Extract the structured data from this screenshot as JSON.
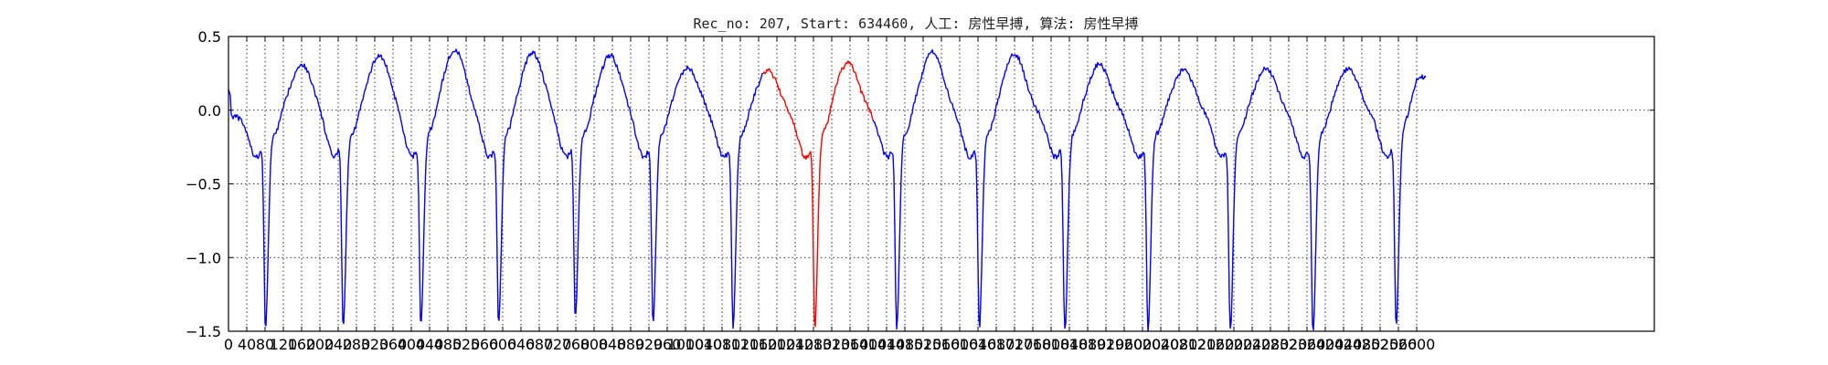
{
  "chart_data": {
    "type": "line",
    "title": "Rec_no: 207, Start: 634460, 人工: 房性早搏, 算法: 房性早搏",
    "xlabel": "",
    "ylabel": "",
    "xlim": [
      0,
      3120
    ],
    "ylim": [
      -1.5,
      0.5
    ],
    "grid": true,
    "y_ticks": [
      0.5,
      0.0,
      -0.5,
      -1.0,
      -1.5
    ],
    "y_tick_labels": [
      "0.5",
      "0.0",
      "−0.5",
      "−1.0",
      "−1.5"
    ],
    "x_ticks": [
      0,
      40,
      80,
      120,
      160,
      200,
      240,
      280,
      320,
      360,
      400,
      440,
      480,
      520,
      560,
      600,
      640,
      680,
      720,
      760,
      800,
      840,
      880,
      920,
      960,
      1000,
      1040,
      1080,
      1120,
      1160,
      1200,
      1240,
      1280,
      1320,
      1360,
      1400,
      1440,
      1480,
      1520,
      1560,
      1600,
      1640,
      1680,
      1720,
      1760,
      1800,
      1840,
      1880,
      1920,
      1960,
      2000,
      2040,
      2080,
      2120,
      2160,
      2200,
      2240,
      2280,
      2320,
      2360,
      2400,
      2440,
      2480,
      2520,
      2560,
      2600
    ],
    "x_tick_labels": [
      "0",
      "40",
      "80",
      "120",
      "160",
      "200",
      "240",
      "280",
      "320",
      "360",
      "400",
      "440",
      "480",
      "520",
      "560",
      "600",
      "640",
      "680",
      "720",
      "760",
      "800",
      "840",
      "880",
      "920",
      "960",
      "1000",
      "1040",
      "1080",
      "1120",
      "1160",
      "1200",
      "1240",
      "1280",
      "1320",
      "1360",
      "1400",
      "1440",
      "1480",
      "1520",
      "1560",
      "1600",
      "1640",
      "1680",
      "1720",
      "1760",
      "1800",
      "1840",
      "1880",
      "1920",
      "1960",
      "2000",
      "2040",
      "2080",
      "2120",
      "2160",
      "2200",
      "2240",
      "2280",
      "2320",
      "2360",
      "2400",
      "2440",
      "2480",
      "2520",
      "2560",
      "2600"
    ],
    "beats": [
      {
        "r": 81,
        "t": 160,
        "t_amp": 0.25,
        "r_amp": -1.42,
        "color": "#0000ff"
      },
      {
        "r": 251,
        "t": 330,
        "t_amp": 0.31,
        "r_amp": -1.41,
        "color": "#0000ff"
      },
      {
        "r": 421,
        "t": 495,
        "t_amp": 0.35,
        "r_amp": -1.4,
        "color": "#0000ff"
      },
      {
        "r": 591,
        "t": 665,
        "t_amp": 0.33,
        "r_amp": -1.39,
        "color": "#0000ff"
      },
      {
        "r": 759,
        "t": 835,
        "t_amp": 0.31,
        "r_amp": -1.35,
        "color": "#0000ff"
      },
      {
        "r": 929,
        "t": 1005,
        "t_amp": 0.23,
        "r_amp": -1.37,
        "color": "#0000ff"
      },
      {
        "r": 1104,
        "t": 1180,
        "t_amp": 0.21,
        "r_amp": -1.43,
        "color": "#0000ff"
      },
      {
        "r": 1283,
        "t": 1355,
        "t_amp": 0.26,
        "r_amp": -1.43,
        "color": "#ff0000"
      },
      {
        "r": 1462,
        "t": 1540,
        "t_amp": 0.34,
        "r_amp": -1.44,
        "color": "#0000ff"
      },
      {
        "r": 1643,
        "t": 1720,
        "t_amp": 0.32,
        "r_amp": -1.42,
        "color": "#0000ff"
      },
      {
        "r": 1830,
        "t": 1905,
        "t_amp": 0.25,
        "r_amp": -1.47,
        "color": "#0000ff"
      },
      {
        "r": 2012,
        "t": 2090,
        "t_amp": 0.21,
        "r_amp": -1.45,
        "color": "#0000ff"
      },
      {
        "r": 2192,
        "t": 2270,
        "t_amp": 0.22,
        "r_amp": -1.46,
        "color": "#0000ff"
      },
      {
        "r": 2373,
        "t": 2450,
        "t_amp": 0.22,
        "r_amp": -1.47,
        "color": "#0000ff"
      },
      {
        "r": 2555,
        "t": 2610,
        "t_amp": 0.17,
        "r_amp": -1.43,
        "color": "#0000ff"
      }
    ],
    "series": [
      {
        "color": "#0000ff",
        "x_range": [
          0,
          1170
        ]
      },
      {
        "color": "#ff0000",
        "x_range": [
          1170,
          1410
        ]
      },
      {
        "color": "#0000ff",
        "x_range": [
          1410,
          2620
        ]
      }
    ]
  }
}
